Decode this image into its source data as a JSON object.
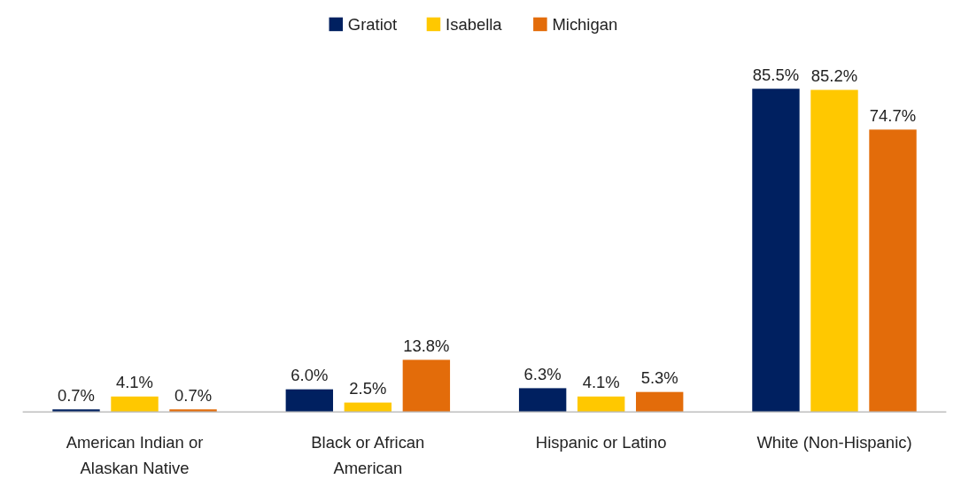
{
  "chart_data": {
    "type": "bar",
    "categories": [
      "American Indian or Alaskan Native",
      "Black or African American",
      "Hispanic or Latino",
      "White (Non-Hispanic)"
    ],
    "series": [
      {
        "name": "Gratiot",
        "color": "#002060",
        "values": [
          0.7,
          6.0,
          6.3,
          85.5
        ],
        "value_labels": [
          "0.7%",
          "6.0%",
          "6.3%",
          "85.5%"
        ]
      },
      {
        "name": "Isabella",
        "color": "#ffc800",
        "values": [
          4.1,
          2.5,
          4.1,
          85.2
        ],
        "value_labels": [
          "4.1%",
          "2.5%",
          "4.1%",
          "85.2%"
        ]
      },
      {
        "name": "Michigan",
        "color": "#e36c0a",
        "values": [
          0.7,
          13.8,
          5.3,
          74.7
        ],
        "value_labels": [
          "0.7%",
          "13.8%",
          "5.3%",
          "74.7%"
        ]
      }
    ],
    "legend": "top"
  }
}
